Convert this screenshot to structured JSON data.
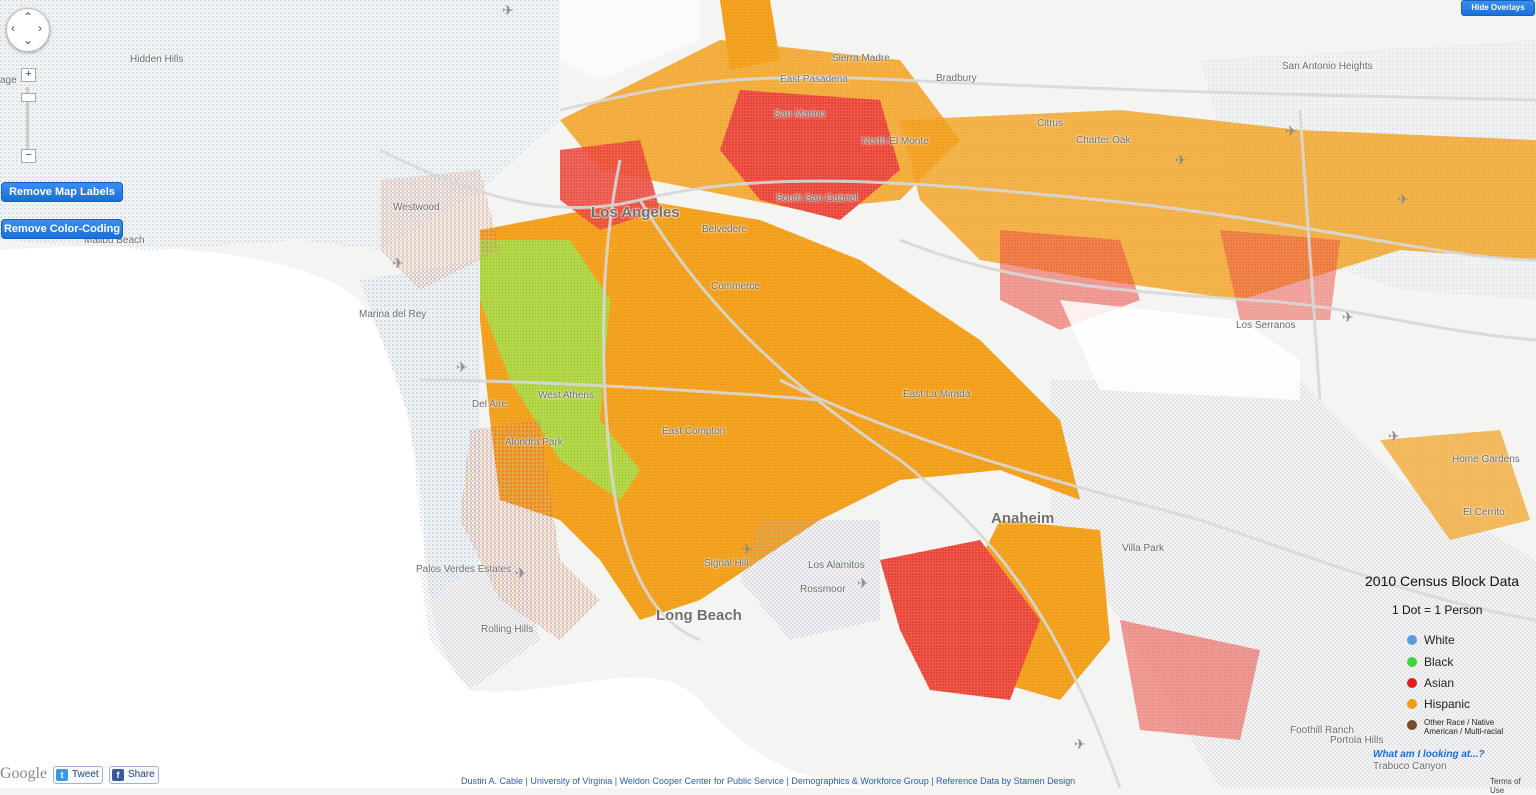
{
  "legend": {
    "title": "2010 Census Block Data",
    "subtitle": "1 Dot = 1 Person",
    "items": [
      {
        "label": "White",
        "color": "#5b9be0"
      },
      {
        "label": "Black",
        "color": "#3fd63f"
      },
      {
        "label": "Asian",
        "color": "#e02020"
      },
      {
        "label": "Hispanic",
        "color": "#f39c12"
      },
      {
        "label": "Other Race / Native American / Multi-racial",
        "color": "#7a4a2a"
      }
    ]
  },
  "controls": {
    "remove_labels": "Remove Map Labels",
    "remove_color": "Remove Color-Coding",
    "hide_overlays": "Hide Overlays",
    "zoom_in": "+",
    "zoom_out": "−",
    "what_am_i": "What am I looking at...?"
  },
  "social": {
    "tweet": "Tweet",
    "share": "Share",
    "google": "Google"
  },
  "footer": {
    "credits": "Dustin A. Cable | University of Virginia | Weldon Cooper Center for Public Service | Demographics & Workforce Group | Reference Data by Stamen Design",
    "terms": "Terms of Use"
  },
  "places": {
    "hidden_hills": "Hidden Hills",
    "sierra_madre": "Sierra Madre",
    "east_pasadena": "East Pasadena",
    "bradbury": "Bradbury",
    "san_antonio_heights": "San Antonio Heights",
    "san_marino": "San Marino",
    "citrus": "Citrus",
    "north_el_monte": "North El Monte",
    "charter_oak": "Charter Oak",
    "westwood": "Westwood",
    "south_san_gabriel": "South San Gabriel",
    "los_angeles": "Los Angeles",
    "malibu_beach": "Malibu Beach",
    "belvedere": "Belvedere",
    "commerce": "Commerce",
    "marina_del_rey": "Marina del Rey",
    "los_serranos": "Los Serranos",
    "east_la_mirada": "East La Mirada",
    "del_aire": "Del Aire",
    "west_athens": "West Athens",
    "east_compton": "East Compton",
    "alondra_park": "Alondra Park",
    "home_gardens": "Home Gardens",
    "el_cerrito": "El Cerrito",
    "anaheim": "Anaheim",
    "villa_park": "Villa Park",
    "palos_verdes_estates": "Palos Verdes Estates",
    "signal_hill": "Signal Hill",
    "los_alamitos": "Los Alamitos",
    "rossmoor": "Rossmoor",
    "long_beach": "Long Beach",
    "rolling_hills": "Rolling Hills",
    "foothill_ranch": "Foothill Ranch",
    "portola_hills": "Portola Hills",
    "trabuco_canyon": "Trabuco Canyon",
    "age_cut": "age"
  }
}
